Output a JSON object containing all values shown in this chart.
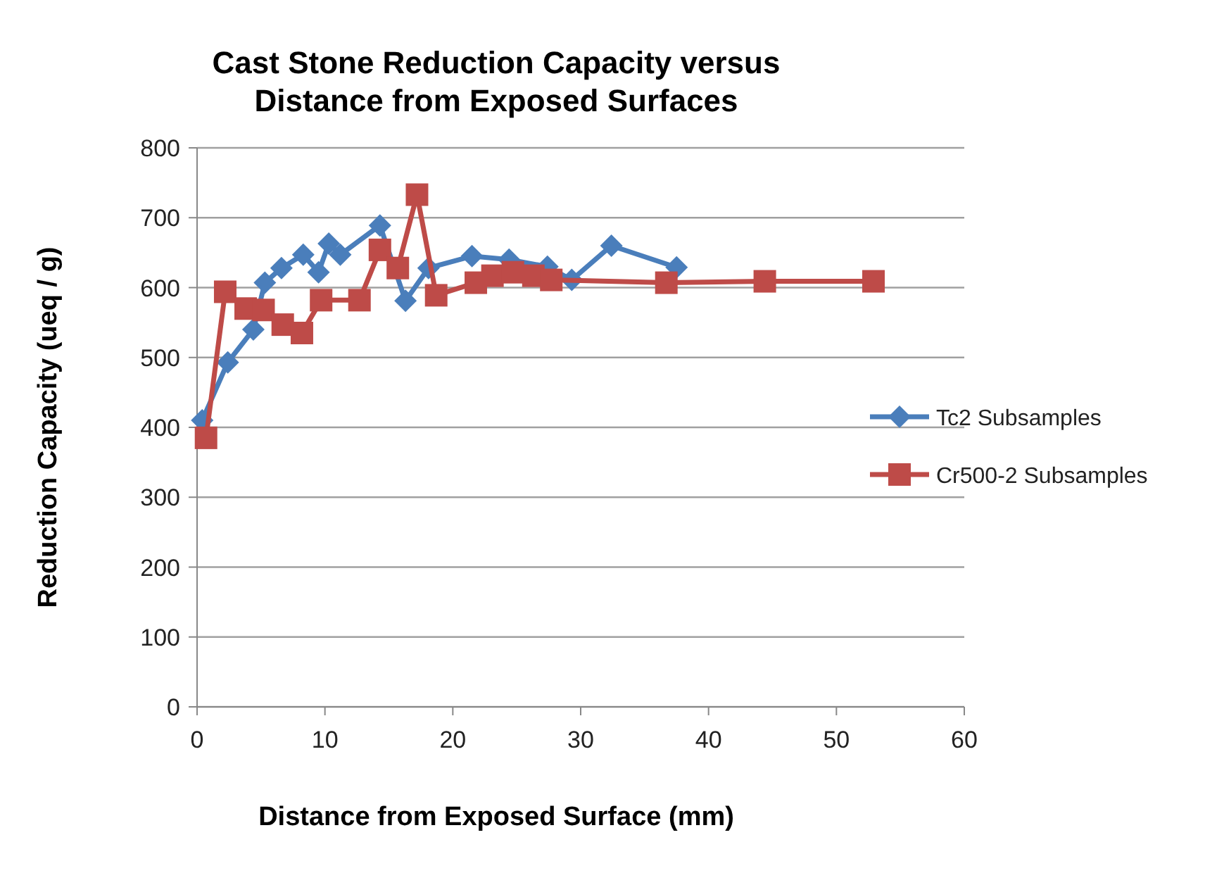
{
  "chart_data": {
    "type": "line",
    "title": "Cast Stone Reduction Capacity  versus Distance from Exposed  Surfaces",
    "xlabel": "Distance from Exposed Surface  (mm)",
    "ylabel": "Reduction Capacity (ueq / g)",
    "xlim": [
      0,
      60
    ],
    "xticks": [
      0,
      10,
      20,
      30,
      40,
      50,
      60
    ],
    "ylim": [
      0,
      800
    ],
    "yticks": [
      0,
      100,
      200,
      300,
      400,
      500,
      600,
      700,
      800
    ],
    "grid": "y",
    "legend": "right",
    "series": [
      {
        "name": "Tc2 Subsamples",
        "color": "#4a7ebb",
        "marker": "diamond",
        "x": [
          0.4,
          2.4,
          4.4,
          5.3,
          6.6,
          8.3,
          9.5,
          10.3,
          11.2,
          14.3,
          16.3,
          18.1,
          21.5,
          24.4,
          27.4,
          29.3,
          32.4,
          37.5
        ],
        "values": [
          410,
          493,
          540,
          607,
          628,
          647,
          622,
          663,
          647,
          689,
          581,
          628,
          645,
          640,
          630,
          611,
          660,
          629
        ]
      },
      {
        "name": "Cr500-2 Subsamples",
        "color": "#be4b48",
        "marker": "square",
        "x": [
          0.7,
          2.2,
          3.8,
          5.2,
          6.7,
          8.2,
          9.7,
          12.7,
          14.3,
          15.7,
          17.2,
          18.7,
          21.8,
          23.1,
          24.7,
          26.3,
          27.7,
          36.7,
          44.4,
          52.9
        ],
        "values": [
          385,
          594,
          570,
          568,
          547,
          535,
          582,
          582,
          654,
          628,
          733,
          589,
          607,
          617,
          622,
          617,
          611,
          607,
          609,
          609
        ]
      }
    ]
  }
}
